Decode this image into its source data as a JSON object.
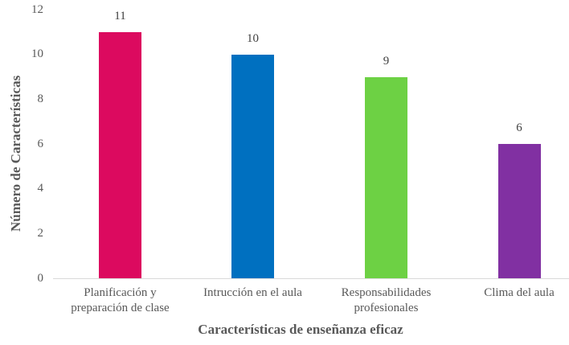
{
  "chart_data": {
    "type": "bar",
    "title": "",
    "xlabel": "Características de enseñanza eficaz",
    "ylabel": "Número de Características",
    "ylim": [
      0,
      12
    ],
    "yticks": [
      "0",
      "2",
      "4",
      "6",
      "8",
      "10",
      "12"
    ],
    "grid": false,
    "legend": null,
    "categories": [
      "Planificación y preparación de clase",
      "Intrucción en el aula",
      "Responsabilidades profesionales",
      "Clima del aula"
    ],
    "category_lines": [
      [
        "Planificación y",
        "preparación de clase"
      ],
      [
        "Intrucción en el aula"
      ],
      [
        "Responsabilidades",
        "profesionales"
      ],
      [
        "Clima del aula"
      ]
    ],
    "values": [
      11,
      10,
      9,
      6
    ],
    "data_labels": [
      "11",
      "10",
      "9",
      "6"
    ],
    "colors": [
      "#dc0a5f",
      "#0070c0",
      "#6dd144",
      "#8130a2"
    ]
  }
}
